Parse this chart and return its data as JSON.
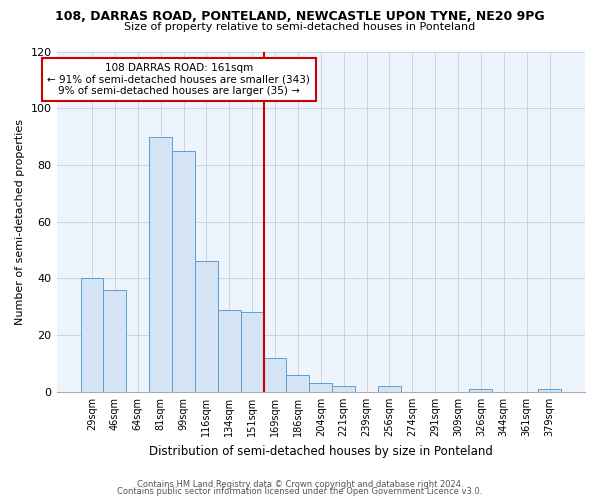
{
  "title_line1": "108, DARRAS ROAD, PONTELAND, NEWCASTLE UPON TYNE, NE20 9PG",
  "title_line2": "Size of property relative to semi-detached houses in Ponteland",
  "xlabel": "Distribution of semi-detached houses by size in Ponteland",
  "ylabel": "Number of semi-detached properties",
  "bin_labels": [
    "29sqm",
    "46sqm",
    "64sqm",
    "81sqm",
    "99sqm",
    "116sqm",
    "134sqm",
    "151sqm",
    "169sqm",
    "186sqm",
    "204sqm",
    "221sqm",
    "239sqm",
    "256sqm",
    "274sqm",
    "291sqm",
    "309sqm",
    "326sqm",
    "344sqm",
    "361sqm",
    "379sqm"
  ],
  "bar_heights": [
    40,
    36,
    0,
    90,
    85,
    46,
    29,
    28,
    12,
    6,
    3,
    2,
    0,
    2,
    0,
    0,
    0,
    1,
    0,
    0,
    1
  ],
  "bar_color": "#d4e4f4",
  "bar_edge_color": "#5a9fd4",
  "vline_color": "#cc0000",
  "vline_x_index": 8,
  "ylim": [
    0,
    120
  ],
  "yticks": [
    0,
    20,
    40,
    60,
    80,
    100,
    120
  ],
  "annotation_line1": "108 DARRAS ROAD: 161sqm",
  "annotation_line2": "← 91% of semi-detached houses are smaller (343)",
  "annotation_line3": "9% of semi-detached houses are larger (35) →",
  "annotation_box_color": "#ffffff",
  "annotation_box_edge": "#cc0000",
  "footer_line1": "Contains HM Land Registry data © Crown copyright and database right 2024.",
  "footer_line2": "Contains public sector information licensed under the Open Government Licence v3.0.",
  "bg_color": "#eef4fc"
}
